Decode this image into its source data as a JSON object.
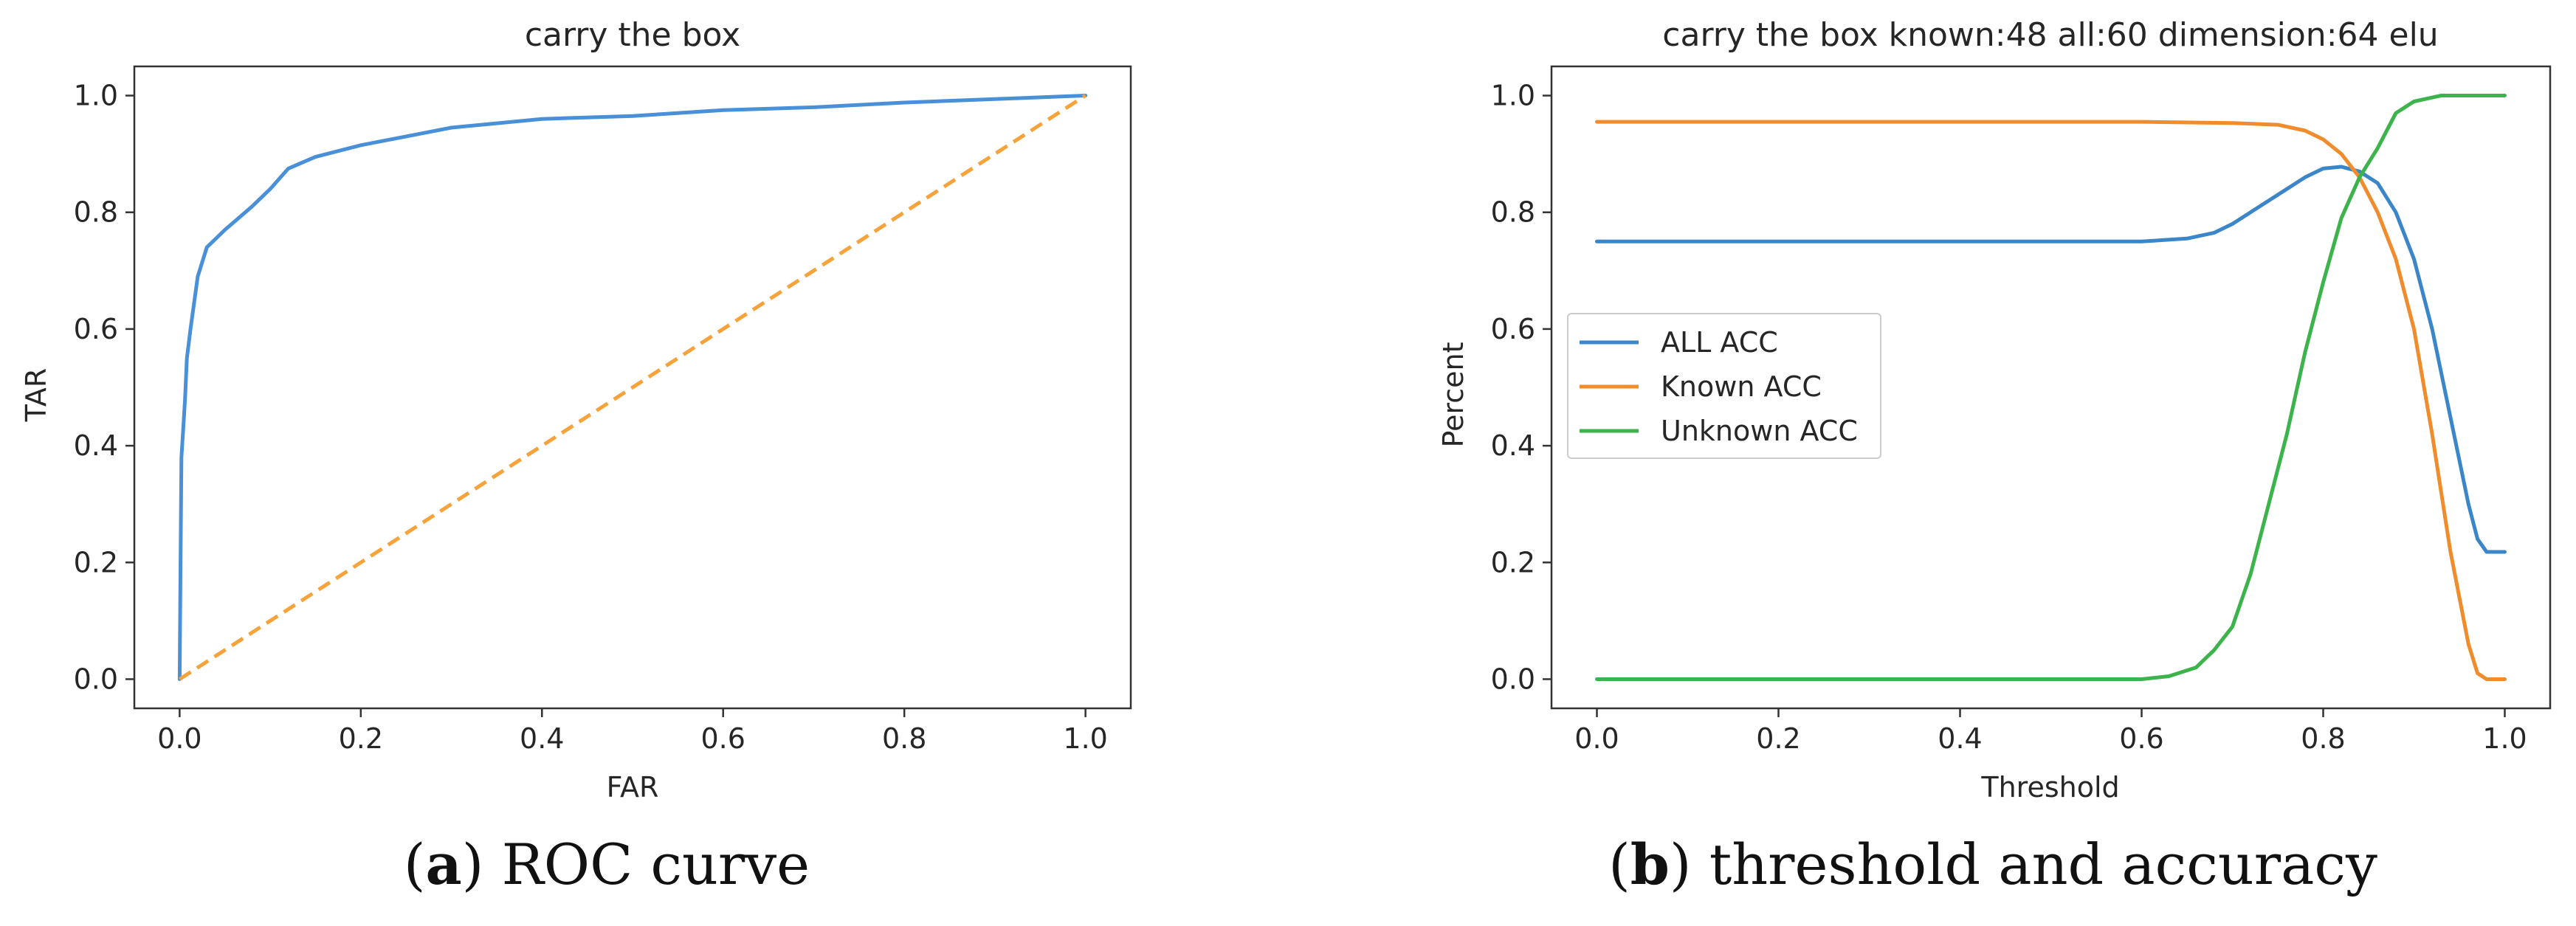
{
  "chart_data": [
    {
      "type": "line",
      "title": "carry the box",
      "xlabel": "FAR",
      "ylabel": "TAR",
      "xlim": [
        -0.05,
        1.05
      ],
      "ylim": [
        -0.05,
        1.05
      ],
      "xticks": [
        "0.0",
        "0.2",
        "0.4",
        "0.6",
        "0.8",
        "1.0"
      ],
      "yticks": [
        "0.0",
        "0.2",
        "0.4",
        "0.6",
        "0.8",
        "1.0"
      ],
      "grid": false,
      "caption": {
        "letter": "a",
        "text": "ROC curve"
      },
      "series": [
        {
          "color": "#4a90d9",
          "dash": "solid",
          "x": [
            0.0,
            0.001,
            0.002,
            0.004,
            0.006,
            0.008,
            0.012,
            0.02,
            0.03,
            0.05,
            0.08,
            0.1,
            0.12,
            0.15,
            0.2,
            0.25,
            0.3,
            0.4,
            0.5,
            0.6,
            0.7,
            0.8,
            0.9,
            0.95,
            1.0
          ],
          "y": [
            0.0,
            0.2,
            0.38,
            0.43,
            0.48,
            0.55,
            0.6,
            0.69,
            0.74,
            0.77,
            0.81,
            0.84,
            0.875,
            0.895,
            0.915,
            0.93,
            0.945,
            0.96,
            0.965,
            0.975,
            0.98,
            0.988,
            0.994,
            0.997,
            1.0
          ]
        },
        {
          "color": "#f5a33a",
          "dash": "dashed",
          "x": [
            0.0,
            1.0
          ],
          "y": [
            0.0,
            1.0
          ]
        }
      ]
    },
    {
      "type": "line",
      "title": "carry the box known:48 all:60 dimension:64 elu",
      "xlabel": "Threshold",
      "ylabel": "Percent",
      "xlim": [
        -0.05,
        1.05
      ],
      "ylim": [
        -0.05,
        1.05
      ],
      "xticks": [
        "0.0",
        "0.2",
        "0.4",
        "0.6",
        "0.8",
        "1.0"
      ],
      "yticks": [
        "0.0",
        "0.2",
        "0.4",
        "0.6",
        "0.8",
        "1.0"
      ],
      "grid": false,
      "legend": "center-left",
      "caption": {
        "letter": "b",
        "text": "threshold and accuracy"
      },
      "series": [
        {
          "name": "ALL ACC",
          "color": "#3b86c8",
          "dash": "solid",
          "x": [
            0.0,
            0.1,
            0.2,
            0.3,
            0.4,
            0.5,
            0.6,
            0.65,
            0.68,
            0.7,
            0.72,
            0.75,
            0.78,
            0.8,
            0.82,
            0.84,
            0.86,
            0.88,
            0.9,
            0.92,
            0.94,
            0.96,
            0.97,
            0.98,
            0.99,
            1.0
          ],
          "y": [
            0.75,
            0.75,
            0.75,
            0.75,
            0.75,
            0.75,
            0.75,
            0.755,
            0.765,
            0.78,
            0.8,
            0.83,
            0.86,
            0.875,
            0.878,
            0.87,
            0.85,
            0.8,
            0.72,
            0.6,
            0.45,
            0.3,
            0.24,
            0.218,
            0.218,
            0.218
          ]
        },
        {
          "name": "Known ACC",
          "color": "#f08c2c",
          "dash": "solid",
          "x": [
            0.0,
            0.1,
            0.2,
            0.3,
            0.4,
            0.5,
            0.6,
            0.7,
            0.75,
            0.78,
            0.8,
            0.82,
            0.84,
            0.86,
            0.88,
            0.9,
            0.92,
            0.94,
            0.96,
            0.97,
            0.98,
            0.99,
            1.0
          ],
          "y": [
            0.955,
            0.955,
            0.955,
            0.955,
            0.955,
            0.955,
            0.955,
            0.953,
            0.95,
            0.94,
            0.925,
            0.9,
            0.86,
            0.8,
            0.72,
            0.6,
            0.42,
            0.22,
            0.06,
            0.01,
            0.0,
            0.0,
            0.0
          ]
        },
        {
          "name": "Unknown ACC",
          "color": "#3cb44b",
          "dash": "solid",
          "x": [
            0.0,
            0.1,
            0.2,
            0.3,
            0.4,
            0.5,
            0.6,
            0.63,
            0.66,
            0.68,
            0.7,
            0.72,
            0.74,
            0.76,
            0.78,
            0.8,
            0.82,
            0.84,
            0.86,
            0.88,
            0.9,
            0.93,
            0.96,
            1.0
          ],
          "y": [
            0.0,
            0.0,
            0.0,
            0.0,
            0.0,
            0.0,
            0.0,
            0.005,
            0.02,
            0.05,
            0.09,
            0.18,
            0.3,
            0.42,
            0.56,
            0.68,
            0.79,
            0.86,
            0.91,
            0.97,
            0.99,
            1.0,
            1.0,
            1.0
          ]
        }
      ]
    }
  ]
}
